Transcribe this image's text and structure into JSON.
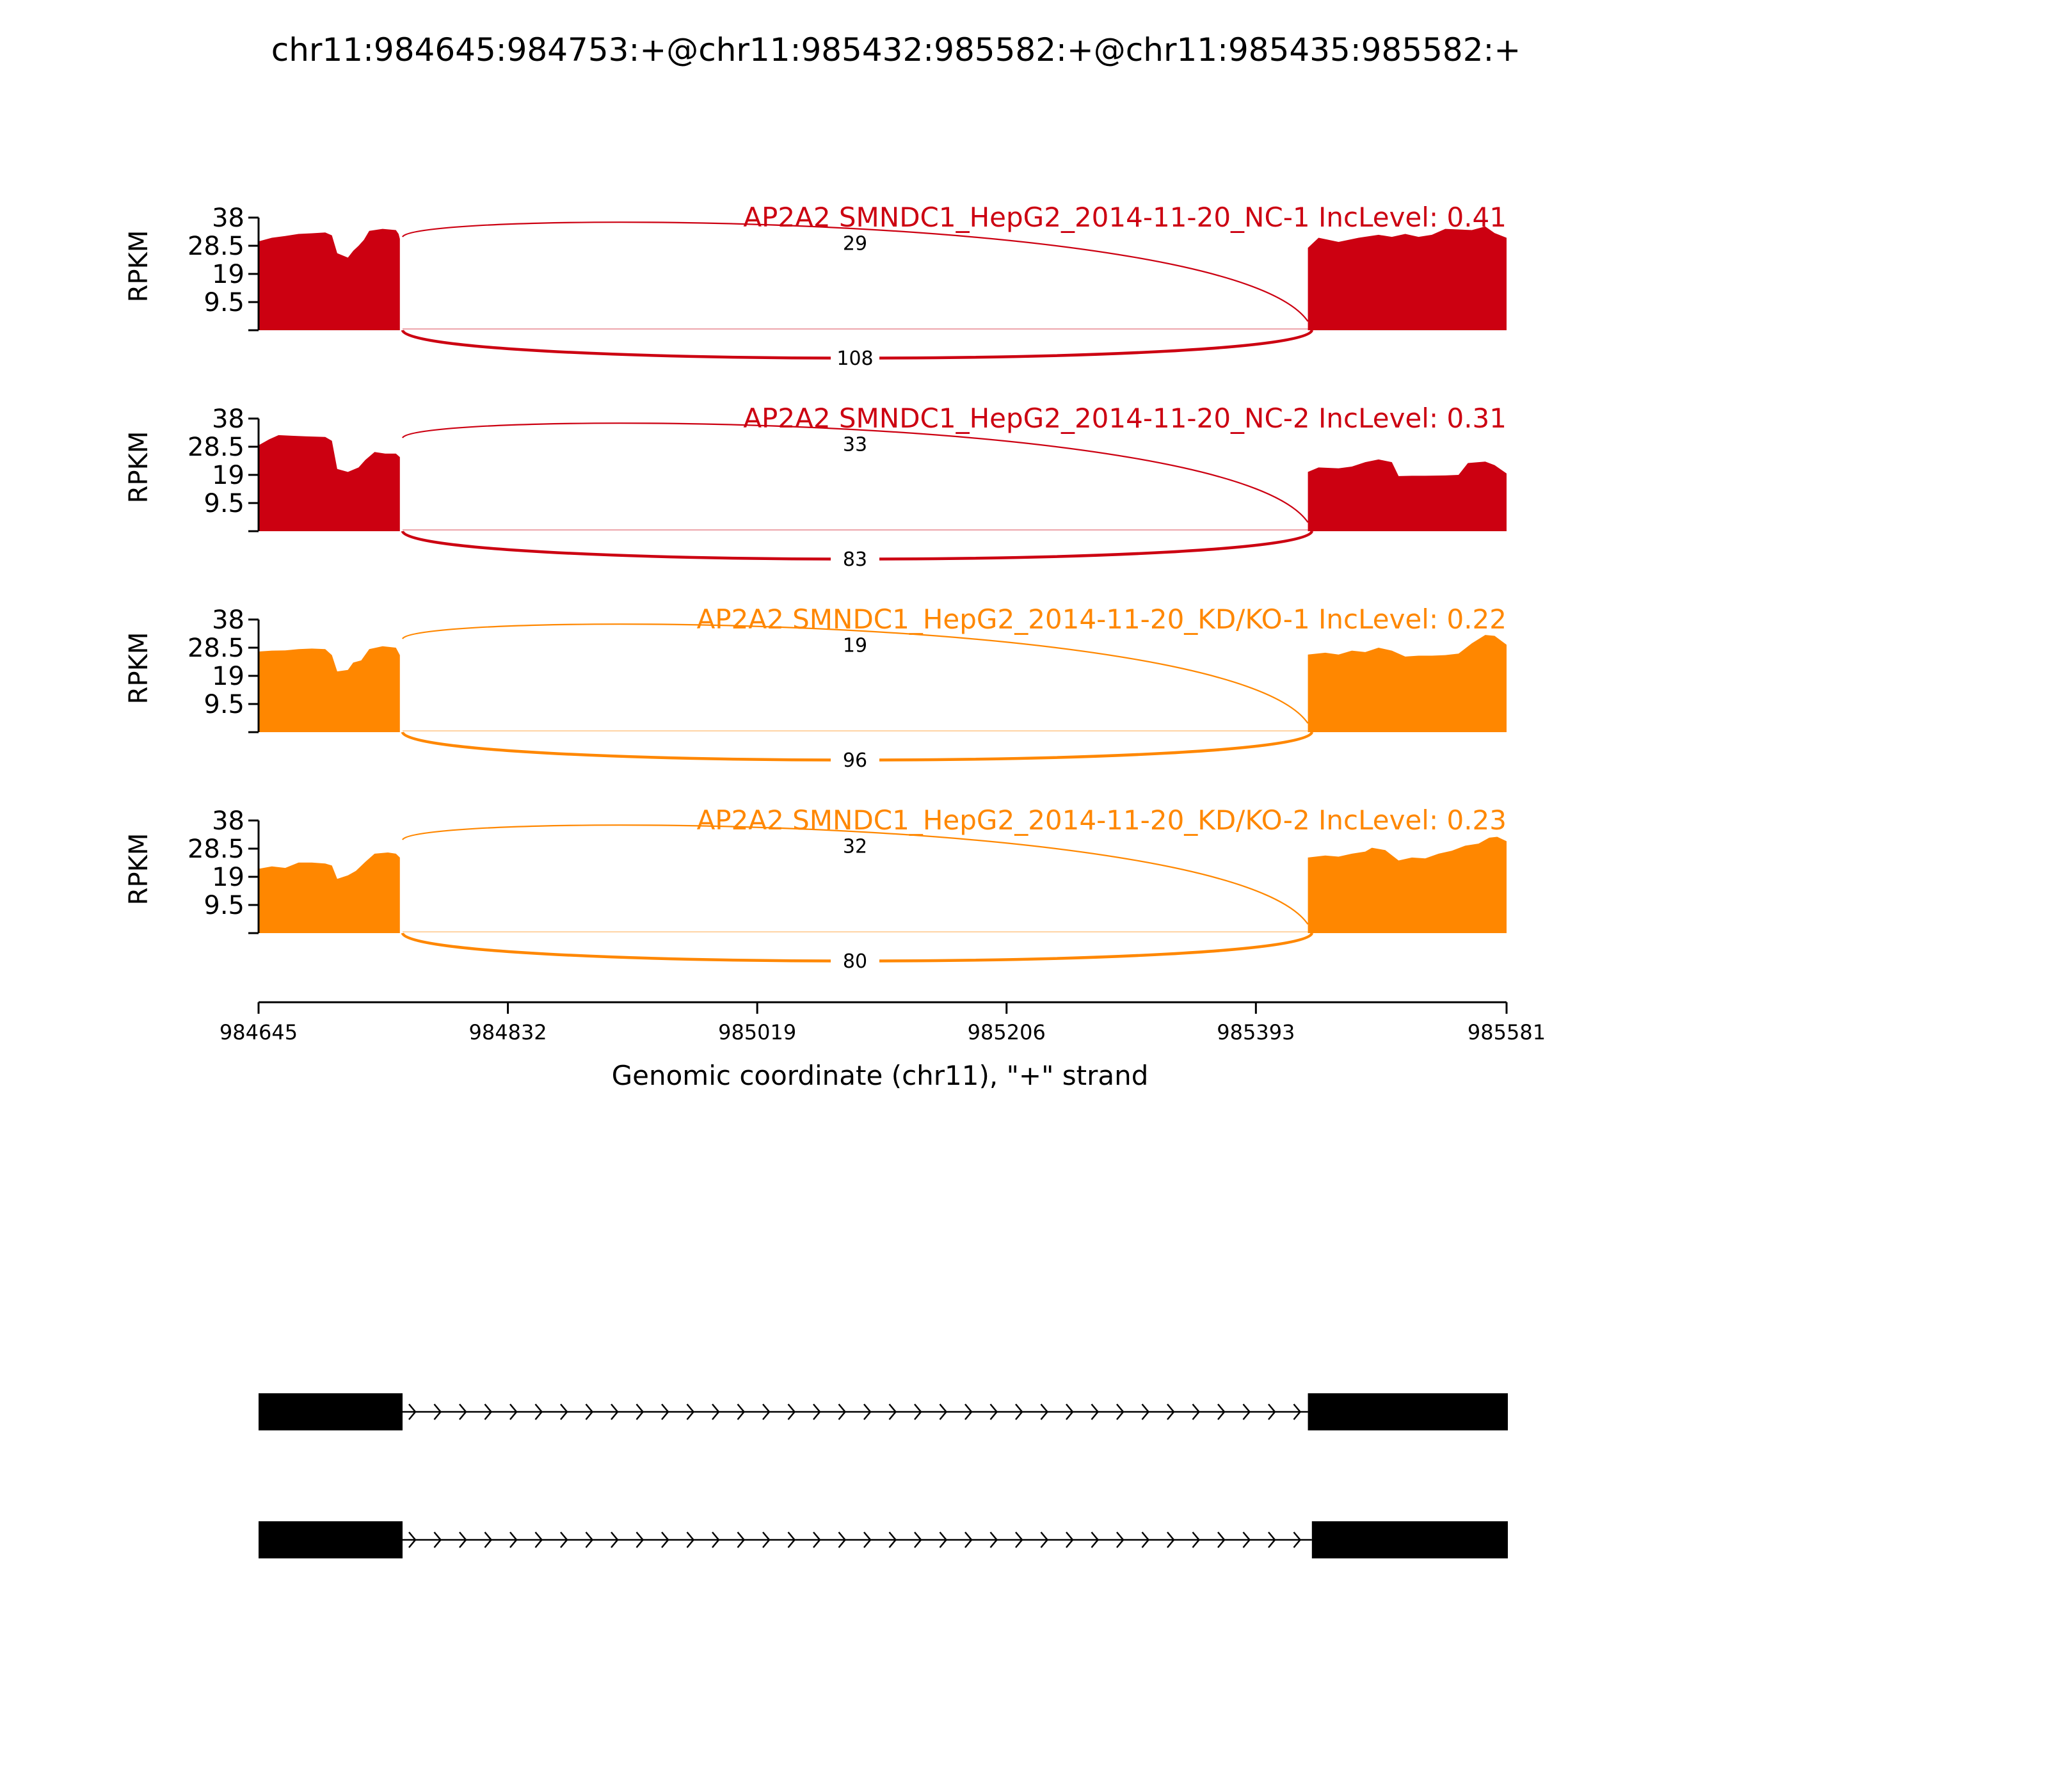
{
  "chart_data": {
    "type": "area",
    "title": "chr11:984645:984753:+@chr11:985432:985582:+@chr11:985435:985582:+",
    "xlabel": "Genomic coordinate (chr11), \"+\" strand",
    "ylabel": "RPKM",
    "xlim": [
      984645,
      985581
    ],
    "ylim": [
      0,
      38
    ],
    "x_ticks": [
      "984645",
      "984832",
      "985019",
      "985206",
      "985393",
      "985581"
    ],
    "y_ticks": [
      "38",
      "28.5",
      "19",
      "9.5"
    ],
    "exons": [
      {
        "start": 984645,
        "end": 984753
      },
      {
        "start": 985432,
        "end": 985582
      },
      {
        "start": 985435,
        "end": 985582
      }
    ],
    "series": [
      {
        "name": "AP2A2 SMNDC1_HepG2_2014-11-20_NC-1 IncLevel: 0.41",
        "color": "#CC0011",
        "junctions": [
          {
            "count": "29",
            "start": 984753,
            "end": 985432,
            "side": "above"
          },
          {
            "count": "108",
            "start": 984753,
            "end": 985435,
            "side": "below"
          }
        ],
        "coverage": {
          "exon1": [
            [
              984645,
              30
            ],
            [
              984655,
              31.2
            ],
            [
              984665,
              31.8
            ],
            [
              984675,
              32.5
            ],
            [
              984685,
              32.7
            ],
            [
              984695,
              33
            ],
            [
              984700,
              32
            ],
            [
              984704,
              26
            ],
            [
              984712,
              24.5
            ],
            [
              984716,
              26.8
            ],
            [
              984720,
              28.5
            ],
            [
              984724,
              30.5
            ],
            [
              984728,
              33.5
            ],
            [
              984738,
              34.2
            ],
            [
              984748,
              33.8
            ],
            [
              984750,
              32.5
            ],
            [
              984751,
              30.8
            ]
          ],
          "exon2": [
            [
              985432,
              27.8
            ],
            [
              985440,
              31.2
            ],
            [
              985455,
              29.8
            ],
            [
              985470,
              31.2
            ],
            [
              985485,
              32.2
            ],
            [
              985495,
              31.5
            ],
            [
              985505,
              32.5
            ],
            [
              985515,
              31.5
            ],
            [
              985525,
              32.2
            ],
            [
              985535,
              34.2
            ],
            [
              985545,
              34
            ],
            [
              985555,
              33.8
            ],
            [
              985565,
              35
            ],
            [
              985572,
              32.8
            ],
            [
              985581,
              31.2
            ]
          ]
        }
      },
      {
        "name": "AP2A2 SMNDC1_HepG2_2014-11-20_NC-2 IncLevel: 0.31",
        "color": "#CC0011",
        "junctions": [
          {
            "count": "33",
            "start": 984753,
            "end": 985432,
            "side": "above"
          },
          {
            "count": "83",
            "start": 984753,
            "end": 985435,
            "side": "below"
          }
        ],
        "coverage": {
          "exon1": [
            [
              984645,
              29
            ],
            [
              984653,
              31
            ],
            [
              984660,
              32.4
            ],
            [
              984670,
              32.2
            ],
            [
              984680,
              32
            ],
            [
              984695,
              31.8
            ],
            [
              984700,
              30.5
            ],
            [
              984704,
              21
            ],
            [
              984712,
              20
            ],
            [
              984720,
              21.5
            ],
            [
              984725,
              24
            ],
            [
              984732,
              26.7
            ],
            [
              984740,
              26.2
            ],
            [
              984748,
              26.2
            ],
            [
              984751,
              25
            ]
          ],
          "exon2": [
            [
              985432,
              20
            ],
            [
              985440,
              21.5
            ],
            [
              985455,
              21.2
            ],
            [
              985465,
              21.8
            ],
            [
              985475,
              23.3
            ],
            [
              985485,
              24.2
            ],
            [
              985495,
              23.3
            ],
            [
              985500,
              18.6
            ],
            [
              985510,
              18.7
            ],
            [
              985520,
              18.7
            ],
            [
              985535,
              18.8
            ],
            [
              985545,
              19
            ],
            [
              985552,
              23
            ],
            [
              985565,
              23.5
            ],
            [
              985572,
              22.3
            ],
            [
              985581,
              19.5
            ]
          ]
        }
      },
      {
        "name": "AP2A2 SMNDC1_HepG2_2014-11-20_KD/KO-1 IncLevel: 0.22",
        "color": "#FF8700",
        "junctions": [
          {
            "count": "19",
            "start": 984753,
            "end": 985432,
            "side": "above"
          },
          {
            "count": "96",
            "start": 984753,
            "end": 985435,
            "side": "below"
          }
        ],
        "coverage": {
          "exon1": [
            [
              984645,
              27.2
            ],
            [
              984655,
              27.5
            ],
            [
              984665,
              27.6
            ],
            [
              984675,
              28
            ],
            [
              984685,
              28.2
            ],
            [
              984695,
              28
            ],
            [
              984700,
              26
            ],
            [
              984704,
              20.5
            ],
            [
              984712,
              21
            ],
            [
              984716,
              23.5
            ],
            [
              984722,
              24.2
            ],
            [
              984728,
              28
            ],
            [
              984738,
              29
            ],
            [
              984748,
              28.5
            ],
            [
              984751,
              26
            ]
          ],
          "exon2": [
            [
              985432,
              26.2
            ],
            [
              985445,
              26.8
            ],
            [
              985455,
              26.2
            ],
            [
              985465,
              27.5
            ],
            [
              985475,
              27
            ],
            [
              985485,
              28.5
            ],
            [
              985495,
              27.5
            ],
            [
              985505,
              25.5
            ],
            [
              985515,
              25.8
            ],
            [
              985525,
              25.8
            ],
            [
              985535,
              26
            ],
            [
              985545,
              26.5
            ],
            [
              985555,
              30
            ],
            [
              985565,
              32.8
            ],
            [
              985572,
              32.5
            ],
            [
              985581,
              29.5
            ]
          ]
        }
      },
      {
        "name": "AP2A2 SMNDC1_HepG2_2014-11-20_KD/KO-2 IncLevel: 0.23",
        "color": "#FF8700",
        "junctions": [
          {
            "count": "32",
            "start": 984753,
            "end": 985432,
            "side": "above"
          },
          {
            "count": "80",
            "start": 984753,
            "end": 985435,
            "side": "below"
          }
        ],
        "coverage": {
          "exon1": [
            [
              984645,
              21.7
            ],
            [
              984655,
              22.5
            ],
            [
              984665,
              22
            ],
            [
              984675,
              23.8
            ],
            [
              984685,
              23.8
            ],
            [
              984695,
              23.5
            ],
            [
              984700,
              22.8
            ],
            [
              984704,
              18.3
            ],
            [
              984712,
              19.5
            ],
            [
              984718,
              21
            ],
            [
              984725,
              24
            ],
            [
              984732,
              26.8
            ],
            [
              984742,
              27.2
            ],
            [
              984748,
              26.8
            ],
            [
              984751,
              25.5
            ]
          ],
          "exon2": [
            [
              985432,
              25.5
            ],
            [
              985445,
              26.2
            ],
            [
              985455,
              25.8
            ],
            [
              985465,
              26.8
            ],
            [
              985475,
              27.5
            ],
            [
              985480,
              28.8
            ],
            [
              985490,
              28
            ],
            [
              985500,
              24.5
            ],
            [
              985510,
              25.5
            ],
            [
              985520,
              25.2
            ],
            [
              985530,
              26.8
            ],
            [
              985540,
              27.8
            ],
            [
              985550,
              29.5
            ],
            [
              985560,
              30.2
            ],
            [
              985568,
              32.2
            ],
            [
              985574,
              32.5
            ],
            [
              985581,
              31
            ]
          ]
        }
      }
    ]
  }
}
